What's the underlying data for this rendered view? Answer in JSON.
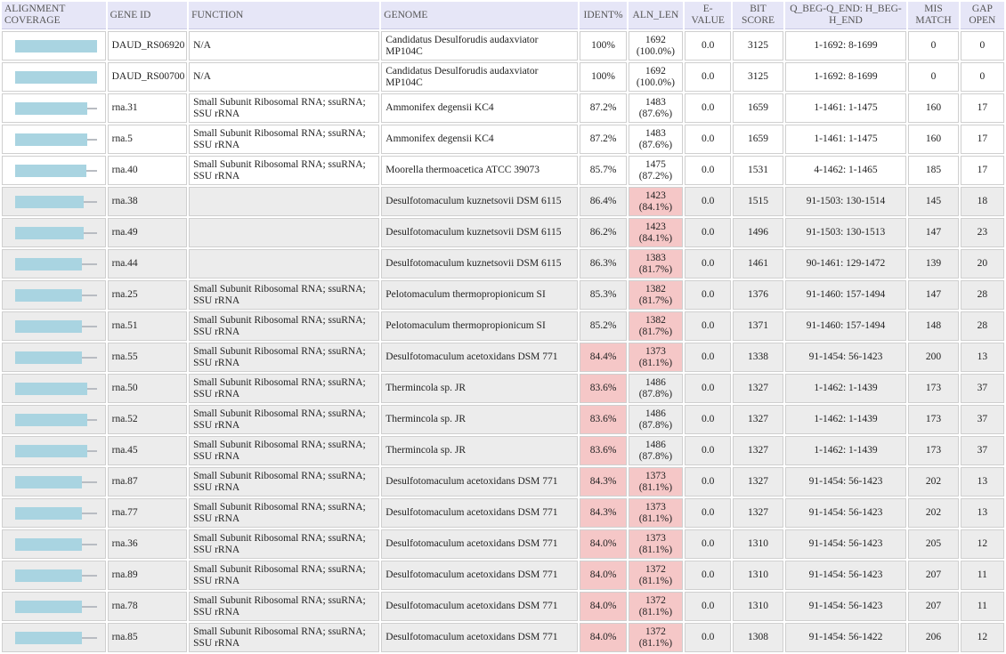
{
  "headers": {
    "coverage": "ALIGNMENT COVERAGE",
    "gene_id": "GENE ID",
    "function": "FUNCTION",
    "genome": "GENOME",
    "ident": "IDENT%",
    "aln_len": "ALN_LEN",
    "evalue": "E-VALUE",
    "bitscore": "BIT SCORE",
    "qh": "Q_BEG-Q_END: H_BEG-H_END",
    "mismatch": "MIS MATCH",
    "gap": "GAP OPEN"
  },
  "colors": {
    "header_bg": "#e6e6f7",
    "row_alt_bg": "#ececec",
    "highlight_bg": "#f5c7c7",
    "coverage_bar": "#a9d4e1",
    "coverage_line": "#b8bcc2"
  },
  "rows": [
    {
      "coverage_pct": 100,
      "gene_id": "DAUD_RS06920",
      "function": "N/A",
      "genome": "Candidatus Desulforudis audaxviator MP104C",
      "ident": "100%",
      "aln_len": "1692",
      "aln_pct": "(100.0%)",
      "evalue": "0.0",
      "bitscore": "3125",
      "qh": "1-1692: 8-1699",
      "mismatch": "0",
      "gap": "0",
      "shade": "white",
      "ident_hl": false,
      "aln_hl": false
    },
    {
      "coverage_pct": 100,
      "gene_id": "DAUD_RS00700",
      "function": "N/A",
      "genome": "Candidatus Desulforudis audaxviator MP104C",
      "ident": "100%",
      "aln_len": "1692",
      "aln_pct": "(100.0%)",
      "evalue": "0.0",
      "bitscore": "3125",
      "qh": "1-1692: 8-1699",
      "mismatch": "0",
      "gap": "0",
      "shade": "white",
      "ident_hl": false,
      "aln_hl": false
    },
    {
      "coverage_pct": 87.6,
      "gene_id": "rna.31",
      "function": "Small Subunit Ribosomal RNA; ssuRNA; SSU rRNA",
      "genome": "Ammonifex degensii KC4",
      "ident": "87.2%",
      "aln_len": "1483",
      "aln_pct": "(87.6%)",
      "evalue": "0.0",
      "bitscore": "1659",
      "qh": "1-1461: 1-1475",
      "mismatch": "160",
      "gap": "17",
      "shade": "white",
      "ident_hl": false,
      "aln_hl": false
    },
    {
      "coverage_pct": 87.6,
      "gene_id": "rna.5",
      "function": "Small Subunit Ribosomal RNA; ssuRNA; SSU rRNA",
      "genome": "Ammonifex degensii KC4",
      "ident": "87.2%",
      "aln_len": "1483",
      "aln_pct": "(87.6%)",
      "evalue": "0.0",
      "bitscore": "1659",
      "qh": "1-1461: 1-1475",
      "mismatch": "160",
      "gap": "17",
      "shade": "white",
      "ident_hl": false,
      "aln_hl": false
    },
    {
      "coverage_pct": 87.2,
      "gene_id": "rna.40",
      "function": "Small Subunit Ribosomal RNA; ssuRNA; SSU rRNA",
      "genome": "Moorella thermoacetica ATCC 39073",
      "ident": "85.7%",
      "aln_len": "1475",
      "aln_pct": "(87.2%)",
      "evalue": "0.0",
      "bitscore": "1531",
      "qh": "4-1462: 1-1465",
      "mismatch": "185",
      "gap": "17",
      "shade": "white",
      "ident_hl": false,
      "aln_hl": false
    },
    {
      "coverage_pct": 84.1,
      "gene_id": "rna.38",
      "function": "",
      "genome": "Desulfotomaculum kuznetsovii DSM 6115",
      "ident": "86.4%",
      "aln_len": "1423",
      "aln_pct": "(84.1%)",
      "evalue": "0.0",
      "bitscore": "1515",
      "qh": "91-1503: 130-1514",
      "mismatch": "145",
      "gap": "18",
      "shade": "gray",
      "ident_hl": false,
      "aln_hl": true
    },
    {
      "coverage_pct": 84.1,
      "gene_id": "rna.49",
      "function": "",
      "genome": "Desulfotomaculum kuznetsovii DSM 6115",
      "ident": "86.2%",
      "aln_len": "1423",
      "aln_pct": "(84.1%)",
      "evalue": "0.0",
      "bitscore": "1496",
      "qh": "91-1503: 130-1513",
      "mismatch": "147",
      "gap": "23",
      "shade": "gray",
      "ident_hl": false,
      "aln_hl": true
    },
    {
      "coverage_pct": 81.7,
      "gene_id": "rna.44",
      "function": "",
      "genome": "Desulfotomaculum kuznetsovii DSM 6115",
      "ident": "86.3%",
      "aln_len": "1383",
      "aln_pct": "(81.7%)",
      "evalue": "0.0",
      "bitscore": "1461",
      "qh": "90-1461: 129-1472",
      "mismatch": "139",
      "gap": "20",
      "shade": "gray",
      "ident_hl": false,
      "aln_hl": true
    },
    {
      "coverage_pct": 81.7,
      "gene_id": "rna.25",
      "function": "Small Subunit Ribosomal RNA; ssuRNA; SSU rRNA",
      "genome": "Pelotomaculum thermopropionicum SI",
      "ident": "85.3%",
      "aln_len": "1382",
      "aln_pct": "(81.7%)",
      "evalue": "0.0",
      "bitscore": "1376",
      "qh": "91-1460: 157-1494",
      "mismatch": "147",
      "gap": "28",
      "shade": "gray",
      "ident_hl": false,
      "aln_hl": true
    },
    {
      "coverage_pct": 81.7,
      "gene_id": "rna.51",
      "function": "Small Subunit Ribosomal RNA; ssuRNA; SSU rRNA",
      "genome": "Pelotomaculum thermopropionicum SI",
      "ident": "85.2%",
      "aln_len": "1382",
      "aln_pct": "(81.7%)",
      "evalue": "0.0",
      "bitscore": "1371",
      "qh": "91-1460: 157-1494",
      "mismatch": "148",
      "gap": "28",
      "shade": "gray",
      "ident_hl": false,
      "aln_hl": true
    },
    {
      "coverage_pct": 81.1,
      "gene_id": "rna.55",
      "function": "Small Subunit Ribosomal RNA; ssuRNA; SSU rRNA",
      "genome": "Desulfotomaculum acetoxidans DSM 771",
      "ident": "84.4%",
      "aln_len": "1373",
      "aln_pct": "(81.1%)",
      "evalue": "0.0",
      "bitscore": "1338",
      "qh": "91-1454: 56-1423",
      "mismatch": "200",
      "gap": "13",
      "shade": "gray",
      "ident_hl": true,
      "aln_hl": true
    },
    {
      "coverage_pct": 87.8,
      "gene_id": "rna.50",
      "function": "Small Subunit Ribosomal RNA; ssuRNA; SSU rRNA",
      "genome": "Thermincola sp. JR",
      "ident": "83.6%",
      "aln_len": "1486",
      "aln_pct": "(87.8%)",
      "evalue": "0.0",
      "bitscore": "1327",
      "qh": "1-1462: 1-1439",
      "mismatch": "173",
      "gap": "37",
      "shade": "gray",
      "ident_hl": true,
      "aln_hl": false
    },
    {
      "coverage_pct": 87.8,
      "gene_id": "rna.52",
      "function": "Small Subunit Ribosomal RNA; ssuRNA; SSU rRNA",
      "genome": "Thermincola sp. JR",
      "ident": "83.6%",
      "aln_len": "1486",
      "aln_pct": "(87.8%)",
      "evalue": "0.0",
      "bitscore": "1327",
      "qh": "1-1462: 1-1439",
      "mismatch": "173",
      "gap": "37",
      "shade": "gray",
      "ident_hl": true,
      "aln_hl": false
    },
    {
      "coverage_pct": 87.8,
      "gene_id": "rna.45",
      "function": "Small Subunit Ribosomal RNA; ssuRNA; SSU rRNA",
      "genome": "Thermincola sp. JR",
      "ident": "83.6%",
      "aln_len": "1486",
      "aln_pct": "(87.8%)",
      "evalue": "0.0",
      "bitscore": "1327",
      "qh": "1-1462: 1-1439",
      "mismatch": "173",
      "gap": "37",
      "shade": "gray",
      "ident_hl": true,
      "aln_hl": false
    },
    {
      "coverage_pct": 81.1,
      "gene_id": "rna.87",
      "function": "Small Subunit Ribosomal RNA; ssuRNA; SSU rRNA",
      "genome": "Desulfotomaculum acetoxidans DSM 771",
      "ident": "84.3%",
      "aln_len": "1373",
      "aln_pct": "(81.1%)",
      "evalue": "0.0",
      "bitscore": "1327",
      "qh": "91-1454: 56-1423",
      "mismatch": "202",
      "gap": "13",
      "shade": "gray",
      "ident_hl": true,
      "aln_hl": true
    },
    {
      "coverage_pct": 81.1,
      "gene_id": "rna.77",
      "function": "Small Subunit Ribosomal RNA; ssuRNA; SSU rRNA",
      "genome": "Desulfotomaculum acetoxidans DSM 771",
      "ident": "84.3%",
      "aln_len": "1373",
      "aln_pct": "(81.1%)",
      "evalue": "0.0",
      "bitscore": "1327",
      "qh": "91-1454: 56-1423",
      "mismatch": "202",
      "gap": "13",
      "shade": "gray",
      "ident_hl": true,
      "aln_hl": true
    },
    {
      "coverage_pct": 81.1,
      "gene_id": "rna.36",
      "function": "Small Subunit Ribosomal RNA; ssuRNA; SSU rRNA",
      "genome": "Desulfotomaculum acetoxidans DSM 771",
      "ident": "84.0%",
      "aln_len": "1373",
      "aln_pct": "(81.1%)",
      "evalue": "0.0",
      "bitscore": "1310",
      "qh": "91-1454: 56-1423",
      "mismatch": "205",
      "gap": "12",
      "shade": "gray",
      "ident_hl": true,
      "aln_hl": true
    },
    {
      "coverage_pct": 81.1,
      "gene_id": "rna.89",
      "function": "Small Subunit Ribosomal RNA; ssuRNA; SSU rRNA",
      "genome": "Desulfotomaculum acetoxidans DSM 771",
      "ident": "84.0%",
      "aln_len": "1372",
      "aln_pct": "(81.1%)",
      "evalue": "0.0",
      "bitscore": "1310",
      "qh": "91-1454: 56-1423",
      "mismatch": "207",
      "gap": "11",
      "shade": "gray",
      "ident_hl": true,
      "aln_hl": true
    },
    {
      "coverage_pct": 81.1,
      "gene_id": "rna.78",
      "function": "Small Subunit Ribosomal RNA; ssuRNA; SSU rRNA",
      "genome": "Desulfotomaculum acetoxidans DSM 771",
      "ident": "84.0%",
      "aln_len": "1372",
      "aln_pct": "(81.1%)",
      "evalue": "0.0",
      "bitscore": "1310",
      "qh": "91-1454: 56-1423",
      "mismatch": "207",
      "gap": "11",
      "shade": "gray",
      "ident_hl": true,
      "aln_hl": true
    },
    {
      "coverage_pct": 81.1,
      "gene_id": "rna.85",
      "function": "Small Subunit Ribosomal RNA; ssuRNA; SSU rRNA",
      "genome": "Desulfotomaculum acetoxidans DSM 771",
      "ident": "84.0%",
      "aln_len": "1372",
      "aln_pct": "(81.1%)",
      "evalue": "0.0",
      "bitscore": "1308",
      "qh": "91-1454: 56-1422",
      "mismatch": "206",
      "gap": "12",
      "shade": "gray",
      "ident_hl": true,
      "aln_hl": true
    }
  ]
}
